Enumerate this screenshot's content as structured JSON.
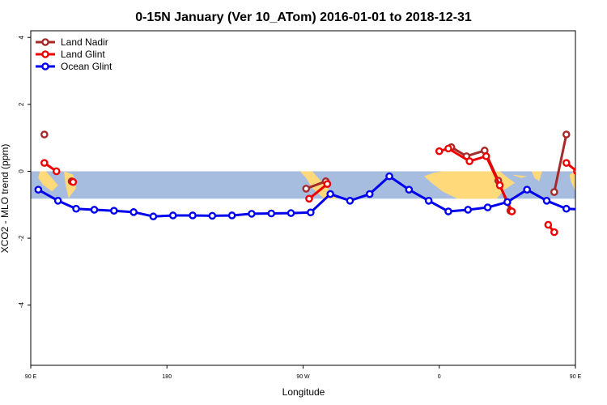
{
  "chart_data": {
    "type": "line",
    "title": "0-15N January (Ver 10_ATom)   2016-01-01 to 2018-12-31",
    "xlabel": "Longitude",
    "ylabel": "XCO2 - MLO trend (ppm)",
    "xlim": [
      90,
      450
    ],
    "ylim": [
      -5.8,
      4.2
    ],
    "x_ticks": [
      {
        "value": 90,
        "label": "90 E"
      },
      {
        "value": 180,
        "label": "180"
      },
      {
        "value": 270,
        "label": "90 W"
      },
      {
        "value": 360,
        "label": "0"
      },
      {
        "value": 450,
        "label": "90 E"
      },
      {
        "value": 540,
        "label": "180"
      }
    ],
    "y_ticks": [
      4,
      2,
      0,
      -2,
      -4
    ],
    "band": {
      "y_from": -0.82,
      "y_to": 0,
      "ocean_color": "#a7bddf",
      "land_color": "#ffd97a"
    },
    "legend_position": "top-left",
    "grid": false,
    "series": [
      {
        "name": "Land Nadir",
        "color": "#a52a2a",
        "segments": [
          [
            [
              99,
              1.1
            ]
          ],
          [
            [
              117,
              -0.3
            ]
          ],
          [
            [
              272,
              -0.52
            ],
            [
              285,
              -0.3
            ]
          ],
          [
            [
              368,
              0.72
            ],
            [
              378,
              0.45
            ],
            [
              390,
              0.62
            ],
            [
              399,
              -0.28
            ],
            [
              407,
              -1.18
            ]
          ],
          [
            [
              436,
              -0.62
            ],
            [
              444,
              1.1
            ]
          ],
          [
            [
              457,
              -0.3
            ]
          ]
        ]
      },
      {
        "name": "Land Glint",
        "color": "#ee0000",
        "segments": [
          [
            [
              99,
              0.25
            ],
            [
              107,
              0.0
            ]
          ],
          [
            [
              118,
              -0.32
            ]
          ],
          [
            [
              274,
              -0.82
            ],
            [
              286,
              -0.38
            ]
          ],
          [
            [
              360,
              0.6
            ],
            [
              366,
              0.68
            ],
            [
              380,
              0.3
            ],
            [
              391,
              0.45
            ],
            [
              400,
              -0.42
            ],
            [
              408,
              -1.2
            ]
          ],
          [
            [
              432,
              -1.6
            ],
            [
              436,
              -1.82
            ]
          ],
          [
            [
              444,
              0.25
            ],
            [
              451,
              0.0
            ]
          ]
        ]
      },
      {
        "name": "Ocean Glint",
        "color": "#0000ee",
        "segments": [
          [
            [
              95,
              -0.55
            ],
            [
              108,
              -0.88
            ],
            [
              120,
              -1.12
            ],
            [
              132,
              -1.15
            ],
            [
              145,
              -1.18
            ],
            [
              158,
              -1.22
            ],
            [
              171,
              -1.35
            ],
            [
              184,
              -1.32
            ],
            [
              197,
              -1.32
            ],
            [
              210,
              -1.33
            ],
            [
              223,
              -1.32
            ],
            [
              236,
              -1.27
            ],
            [
              249,
              -1.26
            ],
            [
              262,
              -1.25
            ],
            [
              275,
              -1.23
            ],
            [
              288,
              -0.68
            ],
            [
              301,
              -0.88
            ],
            [
              314,
              -0.68
            ],
            [
              327,
              -0.15
            ],
            [
              340,
              -0.55
            ],
            [
              353,
              -0.88
            ],
            [
              366,
              -1.2
            ],
            [
              379,
              -1.15
            ],
            [
              392,
              -1.08
            ],
            [
              405,
              -0.92
            ],
            [
              418,
              -0.55
            ],
            [
              431,
              -0.88
            ],
            [
              444,
              -1.12
            ],
            [
              457,
              -1.15
            ],
            [
              470,
              -1.18
            ],
            [
              483,
              -1.22
            ]
          ]
        ]
      }
    ]
  }
}
